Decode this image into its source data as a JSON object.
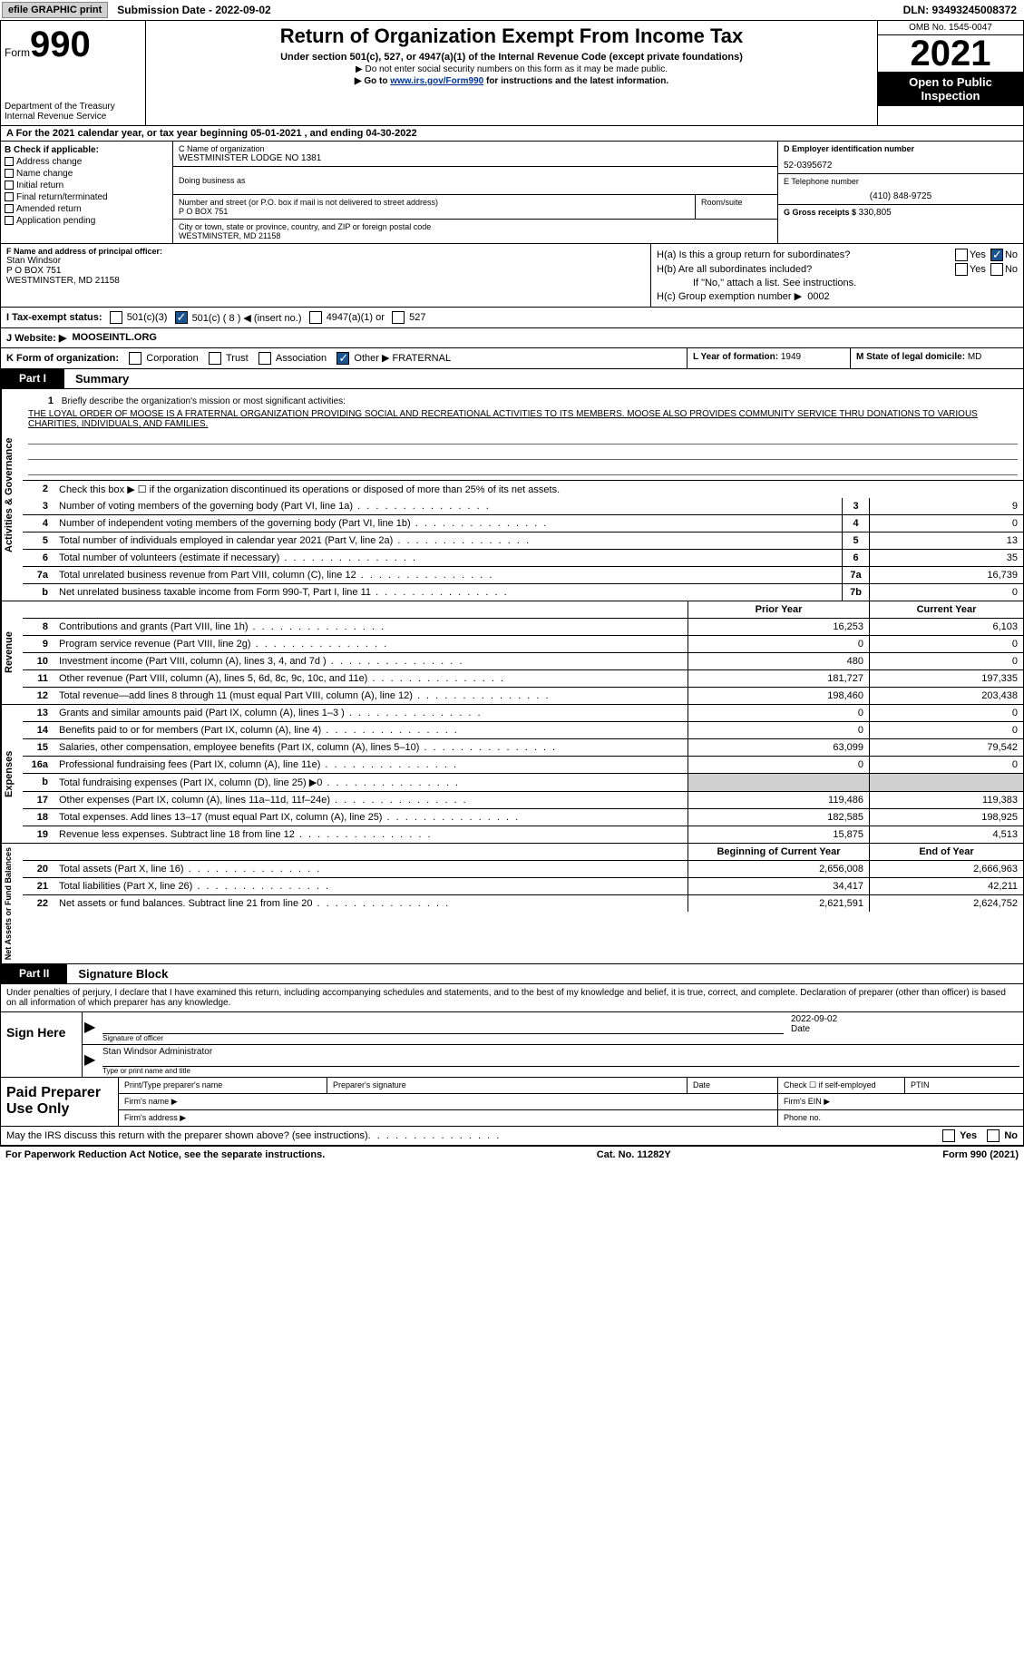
{
  "topbar": {
    "efile_btn": "efile GRAPHIC print",
    "sub_date_label": "Submission Date - 2022-09-02",
    "dln_label": "DLN: 93493245008372"
  },
  "header": {
    "form_prefix": "Form",
    "form_number": "990",
    "dept_text": "Department of the Treasury\nInternal Revenue Service",
    "title": "Return of Organization Exempt From Income Tax",
    "subtitle": "Under section 501(c), 527, or 4947(a)(1) of the Internal Revenue Code (except private foundations)",
    "note1": "▶ Do not enter social security numbers on this form as it may be made public.",
    "note2_pre": "▶ Go to ",
    "note2_link": "www.irs.gov/Form990",
    "note2_post": " for instructions and the latest information.",
    "omb": "OMB No. 1545-0047",
    "year": "2021",
    "inspection": "Open to Public Inspection"
  },
  "rowA": "A  For the 2021 calendar year, or tax year beginning 05-01-2021    , and ending 04-30-2022",
  "boxB": {
    "label": "B Check if applicable:",
    "opts": [
      "Address change",
      "Name change",
      "Initial return",
      "Final return/terminated",
      "Amended return",
      "Application pending"
    ]
  },
  "boxC": {
    "name_label": "C Name of organization",
    "name": "WESTMINISTER LODGE NO 1381",
    "dba_label": "Doing business as",
    "addr_label": "Number and street (or P.O. box if mail is not delivered to street address)",
    "addr": "P O BOX 751",
    "room_label": "Room/suite",
    "city_label": "City or town, state or province, country, and ZIP or foreign postal code",
    "city": "WESTMINSTER, MD  21158"
  },
  "boxD": {
    "label": "D Employer identification number",
    "value": "52-0395672"
  },
  "boxE": {
    "label": "E Telephone number",
    "value": "(410) 848-9725"
  },
  "boxG": {
    "label": "G Gross receipts $ ",
    "value": "330,805"
  },
  "boxF": {
    "label": "F  Name and address of principal officer:",
    "name": "Stan Windsor",
    "addr": "P O BOX 751",
    "city": "WESTMINSTER, MD  21158"
  },
  "boxH": {
    "a_label": "H(a)  Is this a group return for subordinates?",
    "b_label": "H(b)  Are all subordinates included?",
    "b_note": "If \"No,\" attach a list. See instructions.",
    "c_label": "H(c)  Group exemption number ▶",
    "c_value": "0002",
    "yes": "Yes",
    "no": "No"
  },
  "rowI": {
    "label": "I   Tax-exempt status:",
    "o1": "501(c)(3)",
    "o2": "501(c) ( 8 ) ◀ (insert no.)",
    "o3": "4947(a)(1) or",
    "o4": "527"
  },
  "rowJ": {
    "label": "J   Website: ▶",
    "value": "MOOSEINTL.ORG"
  },
  "rowK": {
    "label": "K Form of organization:",
    "opts": [
      "Corporation",
      "Trust",
      "Association"
    ],
    "other_label": "Other ▶",
    "other_value": "FRATERNAL",
    "L_label": "L Year of formation:",
    "L_val": "1949",
    "M_label": "M State of legal domicile:",
    "M_val": "MD"
  },
  "part1": {
    "num": "Part I",
    "title": "Summary"
  },
  "mission": {
    "label": "Briefly describe the organization's mission or most significant activities:",
    "text": "THE LOYAL ORDER OF MOOSE IS A FRATERNAL ORGANIZATION PROVIDING SOCIAL AND RECREATIONAL ACTIVITIES TO ITS MEMBERS. MOOSE ALSO PROVIDES COMMUNITY SERVICE THRU DONATIONS TO VARIOUS CHARITIES, INDIVIDUALS, AND FAMILIES."
  },
  "line2": "Check this box ▶ ☐  if the organization discontinued its operations or disposed of more than 25% of its net assets.",
  "gov_rows": [
    {
      "n": "3",
      "d": "Number of voting members of the governing body (Part VI, line 1a)",
      "box": "3",
      "v": "9"
    },
    {
      "n": "4",
      "d": "Number of independent voting members of the governing body (Part VI, line 1b)",
      "box": "4",
      "v": "0"
    },
    {
      "n": "5",
      "d": "Total number of individuals employed in calendar year 2021 (Part V, line 2a)",
      "box": "5",
      "v": "13"
    },
    {
      "n": "6",
      "d": "Total number of volunteers (estimate if necessary)",
      "box": "6",
      "v": "35"
    },
    {
      "n": "7a",
      "d": "Total unrelated business revenue from Part VIII, column (C), line 12",
      "box": "7a",
      "v": "16,739"
    },
    {
      "n": "b",
      "d": "Net unrelated business taxable income from Form 990-T, Part I, line 11",
      "box": "7b",
      "v": "0"
    }
  ],
  "col_hdr": {
    "prior": "Prior Year",
    "curr": "Current Year"
  },
  "rev_rows": [
    {
      "n": "8",
      "d": "Contributions and grants (Part VIII, line 1h)",
      "p": "16,253",
      "c": "6,103"
    },
    {
      "n": "9",
      "d": "Program service revenue (Part VIII, line 2g)",
      "p": "0",
      "c": "0"
    },
    {
      "n": "10",
      "d": "Investment income (Part VIII, column (A), lines 3, 4, and 7d )",
      "p": "480",
      "c": "0"
    },
    {
      "n": "11",
      "d": "Other revenue (Part VIII, column (A), lines 5, 6d, 8c, 9c, 10c, and 11e)",
      "p": "181,727",
      "c": "197,335"
    },
    {
      "n": "12",
      "d": "Total revenue—add lines 8 through 11 (must equal Part VIII, column (A), line 12)",
      "p": "198,460",
      "c": "203,438"
    }
  ],
  "exp_rows": [
    {
      "n": "13",
      "d": "Grants and similar amounts paid (Part IX, column (A), lines 1–3 )",
      "p": "0",
      "c": "0"
    },
    {
      "n": "14",
      "d": "Benefits paid to or for members (Part IX, column (A), line 4)",
      "p": "0",
      "c": "0"
    },
    {
      "n": "15",
      "d": "Salaries, other compensation, employee benefits (Part IX, column (A), lines 5–10)",
      "p": "63,099",
      "c": "79,542"
    },
    {
      "n": "16a",
      "d": "Professional fundraising fees (Part IX, column (A), line 11e)",
      "p": "0",
      "c": "0"
    },
    {
      "n": "b",
      "d": "Total fundraising expenses (Part IX, column (D), line 25) ▶0",
      "p": "",
      "c": "",
      "shaded": true
    },
    {
      "n": "17",
      "d": "Other expenses (Part IX, column (A), lines 11a–11d, 11f–24e)",
      "p": "119,486",
      "c": "119,383"
    },
    {
      "n": "18",
      "d": "Total expenses. Add lines 13–17 (must equal Part IX, column (A), line 25)",
      "p": "182,585",
      "c": "198,925"
    },
    {
      "n": "19",
      "d": "Revenue less expenses. Subtract line 18 from line 12",
      "p": "15,875",
      "c": "4,513"
    }
  ],
  "na_hdr": {
    "begin": "Beginning of Current Year",
    "end": "End of Year"
  },
  "na_rows": [
    {
      "n": "20",
      "d": "Total assets (Part X, line 16)",
      "p": "2,656,008",
      "c": "2,666,963"
    },
    {
      "n": "21",
      "d": "Total liabilities (Part X, line 26)",
      "p": "34,417",
      "c": "42,211"
    },
    {
      "n": "22",
      "d": "Net assets or fund balances. Subtract line 21 from line 20",
      "p": "2,621,591",
      "c": "2,624,752"
    }
  ],
  "part2": {
    "num": "Part II",
    "title": "Signature Block"
  },
  "sig": {
    "intro": "Under penalties of perjury, I declare that I have examined this return, including accompanying schedules and statements, and to the best of my knowledge and belief, it is true, correct, and complete. Declaration of preparer (other than officer) is based on all information of which preparer has any knowledge.",
    "sign_here": "Sign Here",
    "sol": "Signature of officer",
    "date": "2022-09-02",
    "date_l": "Date",
    "officer": "Stan Windsor  Administrator",
    "top": "Type or print name and title"
  },
  "prep": {
    "title": "Paid Preparer Use Only",
    "r1": {
      "a": "Print/Type preparer's name",
      "b": "Preparer's signature",
      "c": "Date",
      "d": "Check ☐ if self-employed",
      "e": "PTIN"
    },
    "r2": {
      "a": "Firm's name     ▶",
      "b": "Firm's EIN ▶"
    },
    "r3": {
      "a": "Firm's address ▶",
      "b": "Phone no."
    }
  },
  "irs_q": "May the IRS discuss this return with the preparer shown above?  (see instructions)",
  "footer": {
    "l": "For Paperwork Reduction Act Notice, see the separate instructions.",
    "m": "Cat. No. 11282Y",
    "r": "Form 990 (2021)"
  },
  "side_labels": {
    "ag": "Activities & Governance",
    "rev": "Revenue",
    "exp": "Expenses",
    "na": "Net Assets or Fund Balances"
  }
}
